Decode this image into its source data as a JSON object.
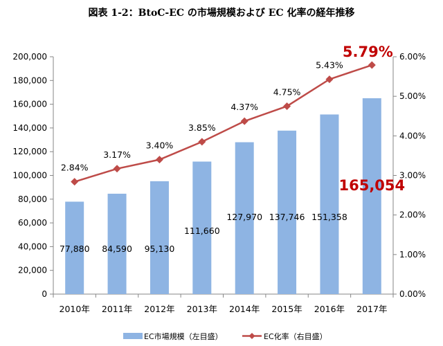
{
  "chart_data": {
    "type": "bar+line",
    "title": "図表 1-2：BtoC-EC の市場規模および EC 化率の経年推移",
    "categories": [
      "2010年",
      "2011年",
      "2012年",
      "2013年",
      "2014年",
      "2015年",
      "2016年",
      "2017年"
    ],
    "series": [
      {
        "name": "EC市場規模（左目盛）",
        "type": "bar",
        "axis": "left",
        "color": "#8eb4e3",
        "values": [
          77880,
          84590,
          95130,
          111660,
          127970,
          137746,
          151358,
          165054
        ],
        "labels": [
          "77,880",
          "84,590",
          "95,130",
          "111,660",
          "127,970",
          "137,746",
          "151,358",
          "165,054"
        ]
      },
      {
        "name": "EC化率（右目盛）",
        "type": "line",
        "axis": "right",
        "color": "#be4b48",
        "values": [
          2.84,
          3.17,
          3.4,
          3.85,
          4.37,
          4.75,
          5.43,
          5.79
        ],
        "labels": [
          "2.84%",
          "3.17%",
          "3.40%",
          "3.85%",
          "4.37%",
          "4.75%",
          "5.43%",
          "5.79%"
        ]
      }
    ],
    "left_axis": {
      "ylim": [
        0,
        200000
      ],
      "ticks": [
        0,
        20000,
        40000,
        60000,
        80000,
        100000,
        120000,
        140000,
        160000,
        180000,
        200000
      ],
      "tick_labels": [
        "0",
        "20,000",
        "40,000",
        "60,000",
        "80,000",
        "100,000",
        "120,000",
        "140,000",
        "160,000",
        "180,000",
        "200,000"
      ]
    },
    "right_axis": {
      "ylim": [
        0,
        6
      ],
      "ticks": [
        0,
        1,
        2,
        3,
        4,
        5,
        6
      ],
      "tick_labels": [
        "0.00%",
        "1.00%",
        "2.00%",
        "3.00%",
        "4.00%",
        "5.00%",
        "6.00%"
      ]
    },
    "highlight_color": "#c00000",
    "grid": false,
    "legend_position": "bottom"
  }
}
